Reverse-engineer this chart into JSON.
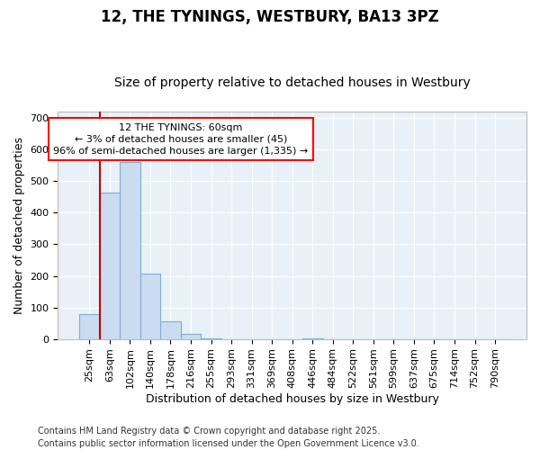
{
  "title": "12, THE TYNINGS, WESTBURY, BA13 3PZ",
  "subtitle": "Size of property relative to detached houses in Westbury",
  "xlabel": "Distribution of detached houses by size in Westbury",
  "ylabel": "Number of detached properties",
  "footer": "Contains HM Land Registry data © Crown copyright and database right 2025.\nContains public sector information licensed under the Open Government Licence v3.0.",
  "categories": [
    "25sqm",
    "63sqm",
    "102sqm",
    "140sqm",
    "178sqm",
    "216sqm",
    "255sqm",
    "293sqm",
    "331sqm",
    "369sqm",
    "408sqm",
    "446sqm",
    "484sqm",
    "522sqm",
    "561sqm",
    "599sqm",
    "637sqm",
    "675sqm",
    "714sqm",
    "752sqm",
    "790sqm"
  ],
  "values": [
    78,
    465,
    560,
    207,
    55,
    15,
    3,
    0,
    0,
    0,
    0,
    2,
    0,
    0,
    0,
    0,
    0,
    0,
    0,
    0,
    0
  ],
  "bar_color": "#ccdcf0",
  "bar_edge_color": "#7aafd4",
  "plot_bg_color": "#e8f0f8",
  "fig_bg_color": "#ffffff",
  "grid_color": "#ffffff",
  "vline_color": "#cc0000",
  "vline_index": 1,
  "annotation_text": "12 THE TYNINGS: 60sqm\n← 3% of detached houses are smaller (45)\n96% of semi-detached houses are larger (1,335) →",
  "ylim": [
    0,
    720
  ],
  "yticks": [
    0,
    100,
    200,
    300,
    400,
    500,
    600,
    700
  ],
  "title_fontsize": 12,
  "subtitle_fontsize": 10,
  "xlabel_fontsize": 9,
  "ylabel_fontsize": 9,
  "tick_fontsize": 8,
  "annot_fontsize": 8,
  "footer_fontsize": 7
}
